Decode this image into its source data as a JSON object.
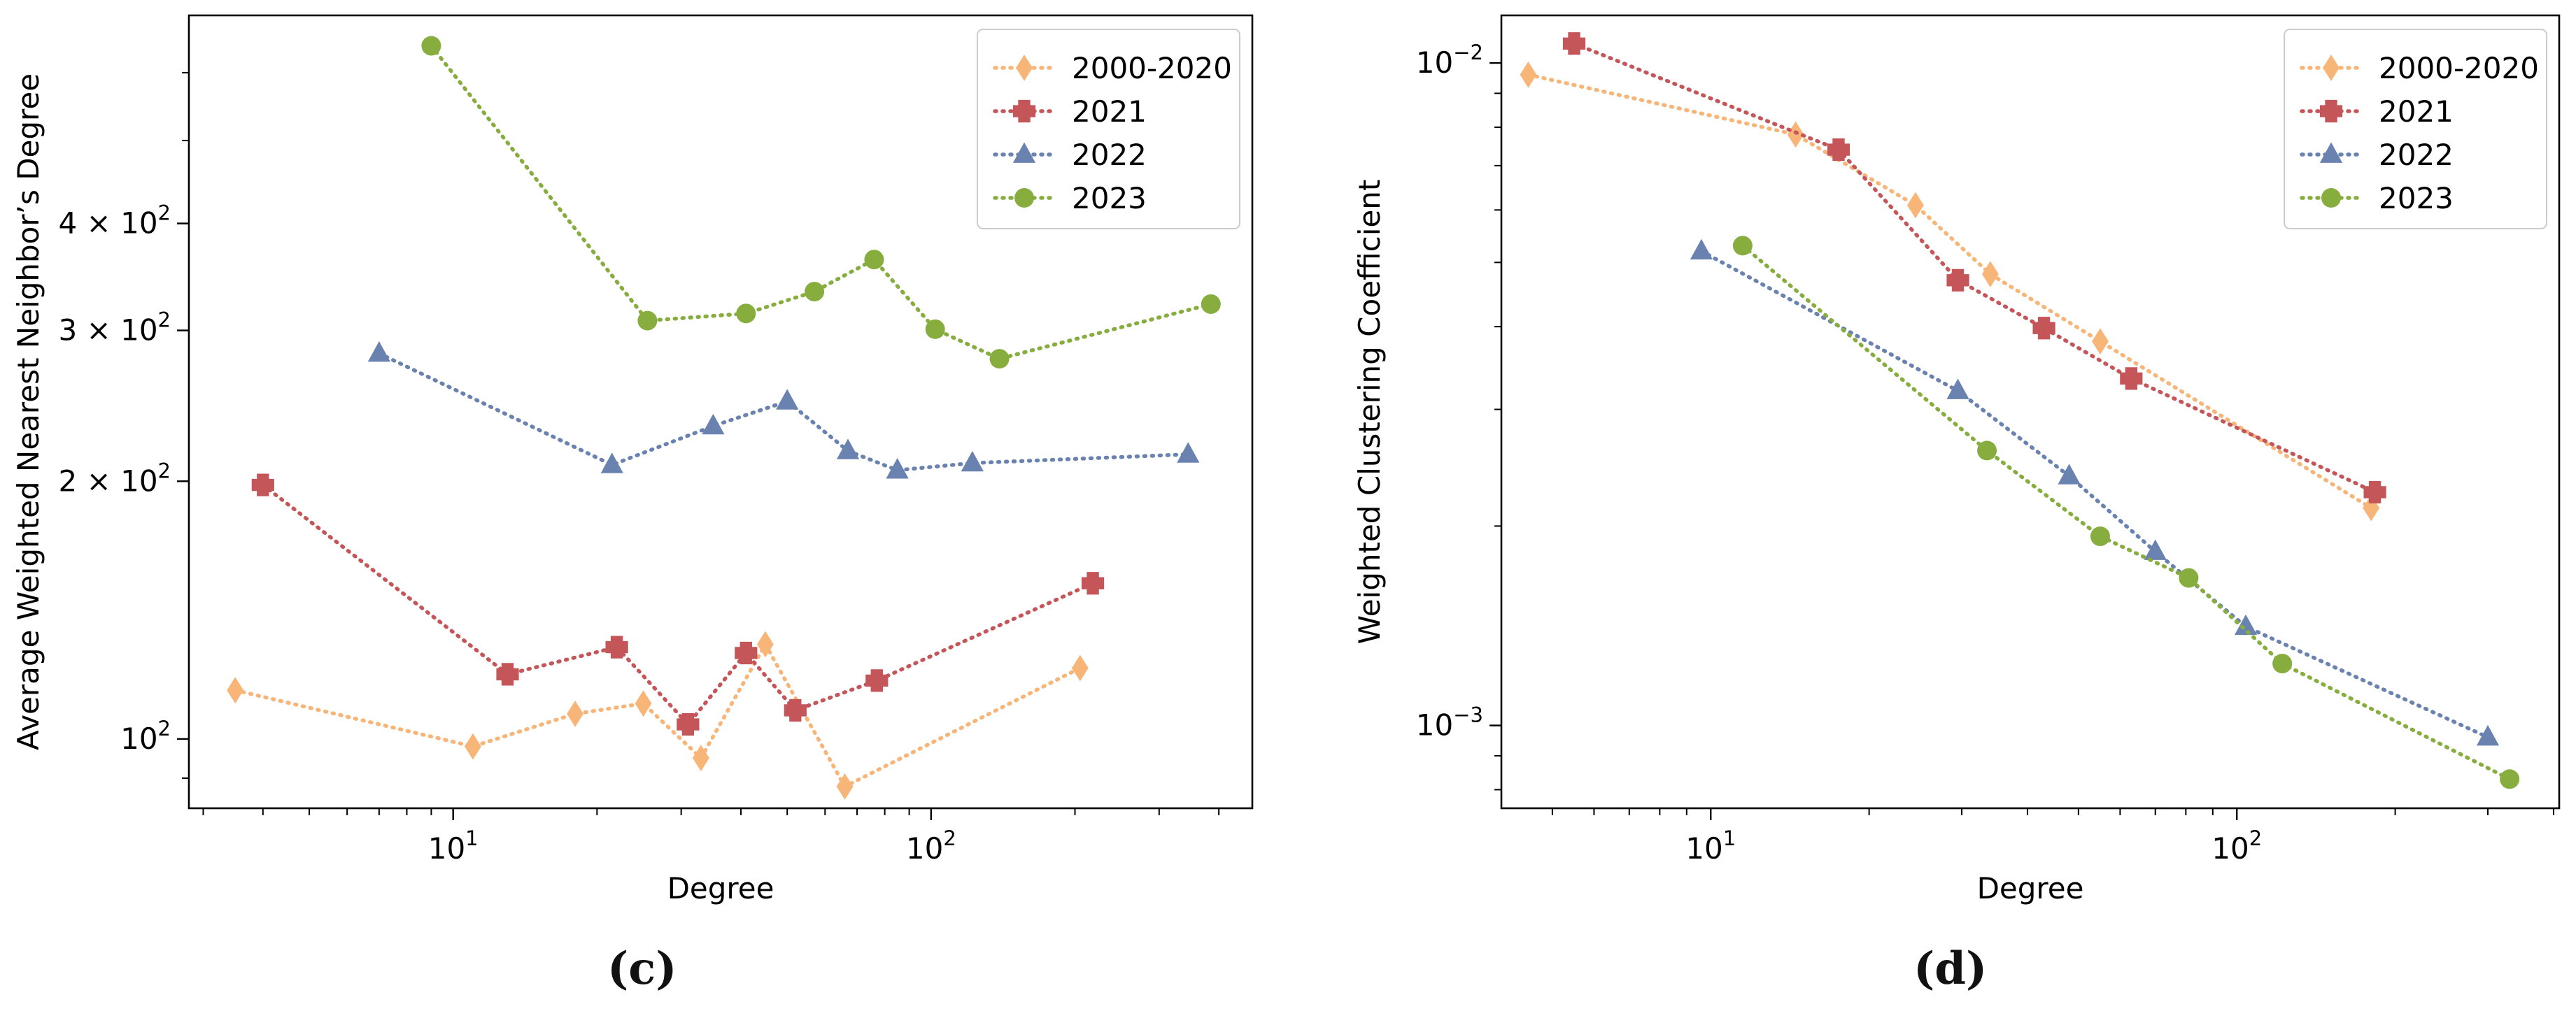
{
  "colors": {
    "s2000": "#f7b578",
    "s2021": "#c4565a",
    "s2022": "#6a82b0",
    "s2023": "#86ad3e"
  },
  "panel_labels": {
    "c": "(c)",
    "d": "(d)"
  },
  "chart_data": [
    {
      "id": "c",
      "type": "line",
      "scale": "log-log",
      "xlabel": "Degree",
      "ylabel": "Average Weighted Nearest Neighbor’s Degree",
      "xlim": [
        2.8,
        470
      ],
      "ylim": [
        83,
        700
      ],
      "xticks": [
        {
          "v": 10,
          "b": "10",
          "e": "1"
        },
        {
          "v": 100,
          "b": "10",
          "e": "2"
        }
      ],
      "yticks": [
        {
          "v": 100,
          "m": "",
          "b": "10",
          "e": "2"
        },
        {
          "v": 200,
          "m": "2 × ",
          "b": "10",
          "e": "2"
        },
        {
          "v": 300,
          "m": "3 × ",
          "b": "10",
          "e": "2"
        },
        {
          "v": 400,
          "m": "4 × ",
          "b": "10",
          "e": "2"
        }
      ],
      "legend_position": "top-right",
      "series": [
        {
          "name": "2000-2020",
          "marker": "diamond",
          "color": "#f7b578",
          "x": [
            3.5,
            11,
            18,
            25,
            33,
            45,
            66,
            205
          ],
          "y": [
            114,
            98,
            107,
            110,
            95,
            129,
            88,
            121
          ]
        },
        {
          "name": "2021",
          "marker": "plus",
          "color": "#c4565a",
          "x": [
            4,
            13,
            22,
            31,
            41,
            52,
            77,
            218
          ],
          "y": [
            198,
            119,
            128,
            104,
            126,
            108,
            117,
            152
          ]
        },
        {
          "name": "2022",
          "marker": "triangle",
          "color": "#6a82b0",
          "x": [
            7,
            21.5,
            35,
            50,
            67,
            85,
            122,
            345
          ],
          "y": [
            282,
            209,
            232,
            248,
            217,
            206,
            210,
            215
          ]
        },
        {
          "name": "2023",
          "marker": "circle",
          "color": "#86ad3e",
          "x": [
            9,
            25.5,
            41,
            57,
            76,
            102,
            139,
            385
          ],
          "y": [
            645,
            308,
            314,
            333,
            363,
            301,
            278,
            322
          ]
        }
      ]
    },
    {
      "id": "d",
      "type": "line",
      "scale": "log-log",
      "xlabel": "Degree",
      "ylabel": "Weighted Clustering Coefficient",
      "xlim": [
        4,
        410
      ],
      "ylim": [
        0.00075,
        0.0118
      ],
      "xticks": [
        {
          "v": 10,
          "b": "10",
          "e": "1"
        },
        {
          "v": 100,
          "b": "10",
          "e": "2"
        }
      ],
      "yticks": [
        {
          "v": 0.01,
          "m": "",
          "b": "10",
          "e": "−2"
        },
        {
          "v": 0.001,
          "m": "",
          "b": "10",
          "e": "−3"
        }
      ],
      "legend_position": "top-right",
      "series": [
        {
          "name": "2000-2020",
          "marker": "diamond",
          "color": "#f7b578",
          "x": [
            4.5,
            14.5,
            24.5,
            34,
            55,
            180
          ],
          "y": [
            0.0096,
            0.0078,
            0.0061,
            0.0048,
            0.0038,
            0.00213
          ]
        },
        {
          "name": "2021",
          "marker": "plus",
          "color": "#c4565a",
          "x": [
            5.5,
            17.5,
            29.5,
            43,
            63,
            183
          ],
          "y": [
            0.0107,
            0.0074,
            0.0047,
            0.00398,
            0.00334,
            0.00225
          ]
        },
        {
          "name": "2022",
          "marker": "triangle",
          "color": "#6a82b0",
          "x": [
            9.6,
            29.5,
            48,
            70,
            104,
            300
          ],
          "y": [
            0.0052,
            0.0032,
            0.00238,
            0.00183,
            0.00141,
            0.00096
          ]
        },
        {
          "name": "2023",
          "marker": "circle",
          "color": "#86ad3e",
          "x": [
            11.5,
            33.5,
            55,
            81,
            122,
            330
          ],
          "y": [
            0.0053,
            0.0026,
            0.00193,
            0.00167,
            0.00124,
            0.00083
          ]
        }
      ]
    }
  ]
}
